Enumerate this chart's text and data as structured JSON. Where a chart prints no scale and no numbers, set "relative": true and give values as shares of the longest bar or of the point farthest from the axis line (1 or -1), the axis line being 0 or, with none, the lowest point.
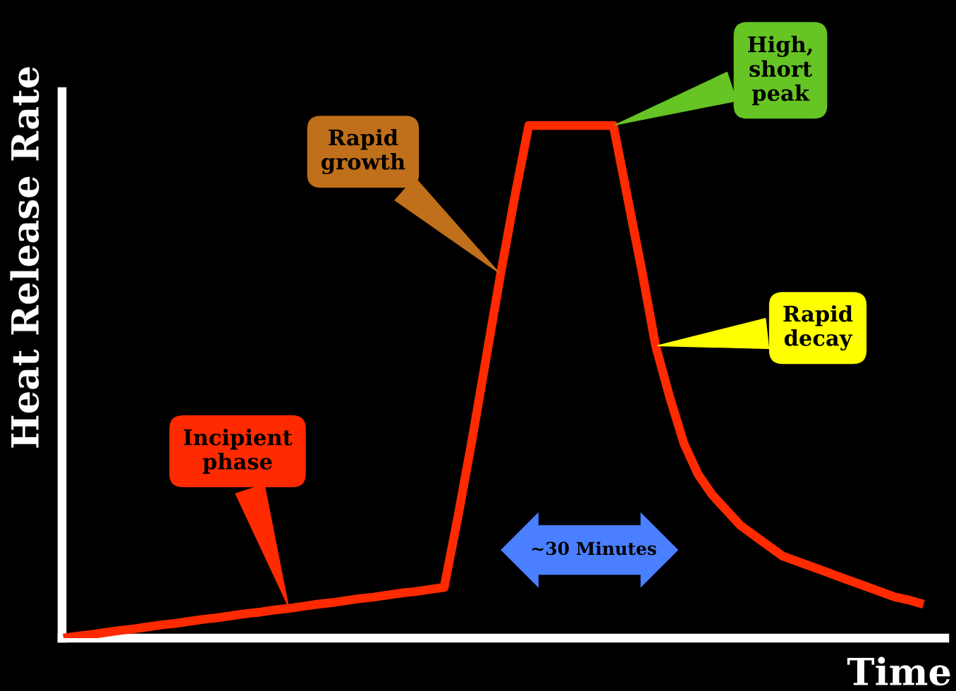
{
  "chart_data": {
    "type": "line",
    "relative": true,
    "grid": false,
    "xlabel": "Time",
    "ylabel": "Heat Release Rate",
    "categories": [
      null,
      null,
      null,
      null,
      null,
      null,
      null,
      null,
      null,
      null,
      null,
      null,
      null,
      null,
      null,
      null,
      null,
      null,
      null,
      null,
      null,
      null,
      null,
      null,
      null,
      null,
      null,
      null,
      null,
      null,
      null,
      null,
      null,
      null,
      null,
      null,
      null,
      null,
      null,
      null,
      null,
      null,
      null,
      null,
      null,
      null,
      null,
      null,
      null,
      null,
      null,
      null,
      null,
      null,
      null,
      null,
      null,
      null,
      null,
      null,
      null,
      null
    ],
    "color": "#ff2a00",
    "line_style": "solid",
    "values": [
      0,
      0.004,
      0.007,
      0.011,
      0.015,
      0.018,
      0.022,
      0.026,
      0.029,
      0.033,
      0.037,
      0.04,
      0.044,
      0.048,
      0.051,
      0.055,
      0.058,
      0.062,
      0.066,
      0.069,
      0.073,
      0.077,
      0.08,
      0.084,
      0.088,
      0.091,
      0.095,
      0.099,
      0.24,
      0.39,
      0.55,
      0.71,
      0.86,
      1,
      1,
      1,
      1,
      1,
      1,
      1,
      0.86,
      0.72,
      0.57,
      0.47,
      0.38,
      0.32,
      0.28,
      0.25,
      0.22,
      0.2,
      0.18,
      0.16,
      0.15,
      0.14,
      0.13,
      0.12,
      0.11,
      0.1,
      0.09,
      0.08,
      0.074,
      0.066
    ],
    "annotations": [
      "Incipient\nphase",
      "Rapid\ngrowth",
      "High,\nshort\npeak",
      "Rapid\ndecay",
      "~30 Minutes"
    ]
  }
}
